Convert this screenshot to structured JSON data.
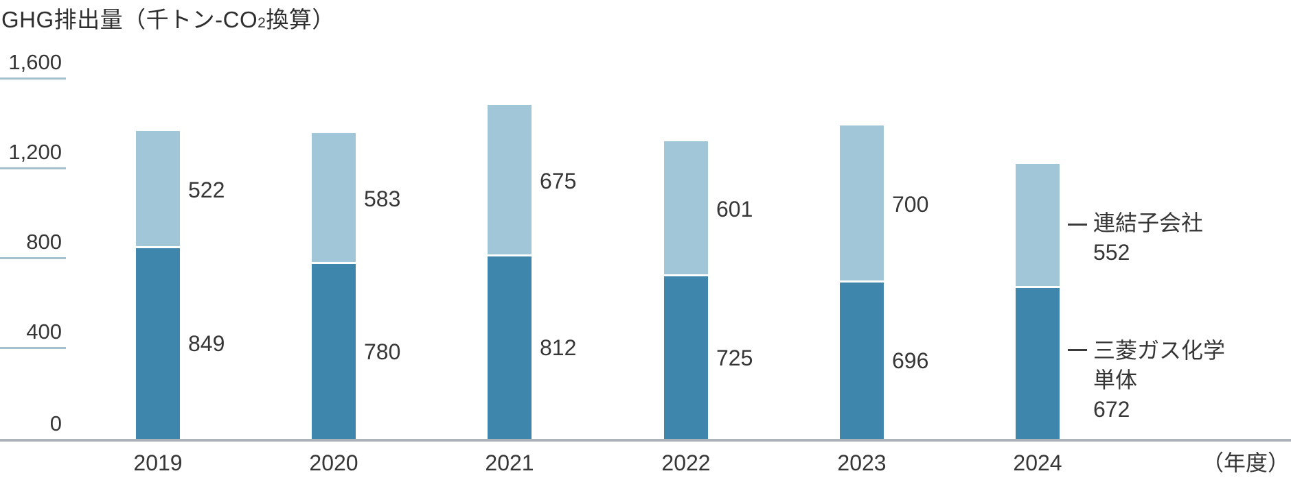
{
  "chart_data": {
    "type": "bar",
    "stacked": true,
    "title": {
      "prefix": "GHG排出量（千トン-CO",
      "subscript": "2",
      "suffix": "換算）"
    },
    "categories": [
      "2019",
      "2020",
      "2021",
      "2022",
      "2023",
      "2024"
    ],
    "series": [
      {
        "name": "三菱ガス化学単体",
        "color": "#3e86ab",
        "values": [
          849,
          780,
          812,
          725,
          696,
          672
        ],
        "value_labels": [
          "849",
          "780",
          "812",
          "725",
          "696",
          "672"
        ]
      },
      {
        "name": "連結子会社",
        "color": "#a1c6d8",
        "values": [
          522,
          583,
          675,
          601,
          700,
          552
        ],
        "value_labels": [
          "522",
          "583",
          "675",
          "601",
          "700",
          "552"
        ]
      }
    ],
    "y_axis": {
      "min": 0,
      "max": 1600,
      "ticks": [
        {
          "value": 1600,
          "label": "1,600"
        },
        {
          "value": 1200,
          "label": "1,200"
        },
        {
          "value": 800,
          "label": "800"
        },
        {
          "value": 400,
          "label": "400"
        },
        {
          "value": 0,
          "label": "0"
        }
      ]
    },
    "x_unit_label": "（年度）",
    "grid": "left-stub-ticks-only",
    "legend_position": "annotations-right-of-last-bar",
    "annotations": {
      "subsidiaries": {
        "lines": [
          "連結子会社",
          "552"
        ]
      },
      "parent": {
        "lines": [
          "三菱ガス化学",
          "単体",
          "672"
        ]
      }
    },
    "colors": {
      "parent_bar": "#3e86ab",
      "subsidiaries_bar": "#a1c6d8",
      "tick_line": "#a6c0ce",
      "axis_line": "#adb2b8",
      "text": "#363636"
    }
  }
}
